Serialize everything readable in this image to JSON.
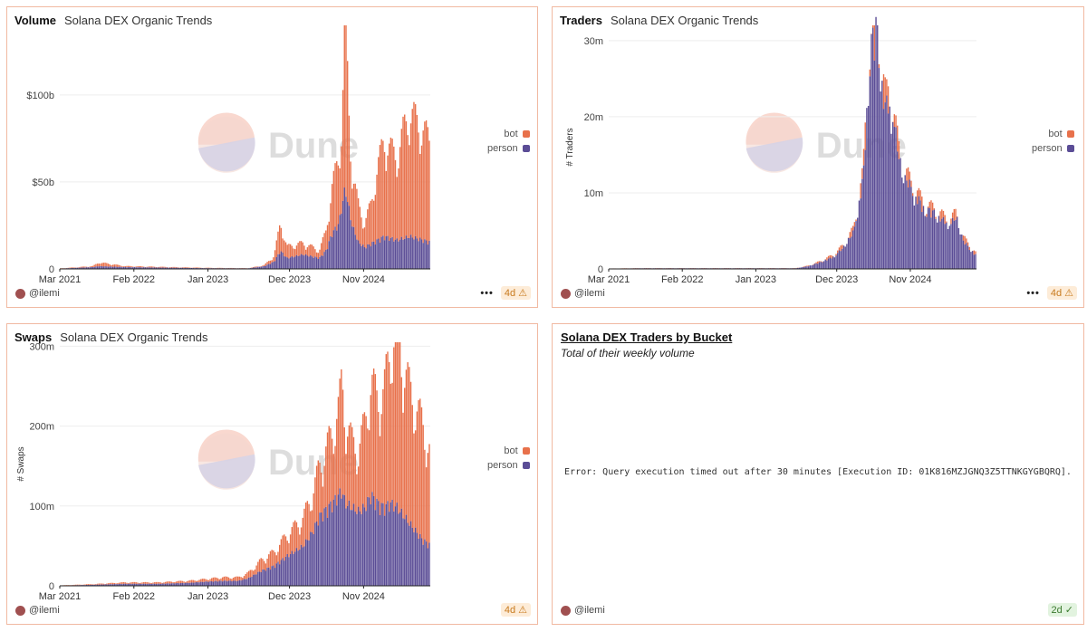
{
  "colors": {
    "bot": "#e8714b",
    "person": "#5b4d96",
    "border": "#f1b9a1",
    "grid": "#eeeeee",
    "axis": "#444444"
  },
  "watermark": {
    "text": "Dune"
  },
  "charts": {
    "volume": {
      "title": "Volume",
      "subtitle": "Solana DEX Organic Trends",
      "author": "@ilemi",
      "age": "4d",
      "legend": [
        "bot",
        "person"
      ]
    },
    "traders": {
      "title": "Traders",
      "subtitle": "Solana DEX Organic Trends",
      "author": "@ilemi",
      "age": "4d",
      "legend": [
        "bot",
        "person"
      ]
    },
    "swaps": {
      "title": "Swaps",
      "subtitle": "Solana DEX Organic Trends",
      "author": "@ilemi",
      "age": "4d",
      "legend": [
        "bot",
        "person"
      ]
    }
  },
  "table": {
    "title": "Solana DEX Traders by Bucket",
    "subtitle": "Total of their weekly volume",
    "error": "Error: Query execution timed out after 30 minutes [Execution ID: 01K816MZJGNQ3Z5TTNKGYGBQRQ].",
    "author": "@ilemi",
    "age": "2d"
  },
  "chart_data": [
    {
      "type": "bar",
      "stacked": true,
      "title": "Volume",
      "subtitle": "Solana DEX Organic Trends",
      "xlabel": "",
      "ylabel": "",
      "ylim": [
        0,
        140
      ],
      "yunit": "$b",
      "xticks": [
        "Mar 2021",
        "Feb 2022",
        "Jan 2023",
        "Dec 2023",
        "Nov 2024"
      ],
      "yticks": [
        "0",
        "$50b",
        "$100b"
      ],
      "ytick_values": [
        0,
        50,
        100
      ],
      "legend": [
        "bot",
        "person"
      ],
      "legend_position": "right",
      "x_start": "2021-03",
      "x_end": "2025-10",
      "keypoints_total": [
        [
          0,
          0.3
        ],
        [
          0.1,
          1.5
        ],
        [
          0.12,
          3.5
        ],
        [
          0.2,
          1.5
        ],
        [
          0.45,
          0.6
        ],
        [
          0.58,
          0.4
        ],
        [
          0.63,
          2
        ],
        [
          0.66,
          7
        ],
        [
          0.68,
          25
        ],
        [
          0.7,
          12
        ],
        [
          0.75,
          14
        ],
        [
          0.8,
          10
        ],
        [
          0.82,
          20
        ],
        [
          0.84,
          45
        ],
        [
          0.86,
          60
        ],
        [
          0.87,
          80
        ],
        [
          0.88,
          140
        ],
        [
          0.89,
          90
        ],
        [
          0.9,
          55
        ],
        [
          0.92,
          35
        ],
        [
          0.94,
          25
        ],
        [
          0.96,
          35
        ],
        [
          0.98,
          55
        ],
        [
          1,
          70
        ],
        [
          1.02,
          65
        ],
        [
          1.04,
          60
        ],
        [
          1.06,
          75
        ],
        [
          1.08,
          85
        ],
        [
          1.1,
          80
        ],
        [
          1.12,
          75
        ],
        [
          1.14,
          70
        ]
      ],
      "keypoints_person": [
        [
          0,
          0.2
        ],
        [
          0.1,
          1
        ],
        [
          0.12,
          1.5
        ],
        [
          0.2,
          1
        ],
        [
          0.45,
          0.4
        ],
        [
          0.58,
          0.3
        ],
        [
          0.63,
          1.5
        ],
        [
          0.66,
          4
        ],
        [
          0.68,
          10
        ],
        [
          0.7,
          6
        ],
        [
          0.75,
          8
        ],
        [
          0.8,
          6
        ],
        [
          0.82,
          10
        ],
        [
          0.84,
          20
        ],
        [
          0.86,
          25
        ],
        [
          0.87,
          35
        ],
        [
          0.88,
          45
        ],
        [
          0.89,
          35
        ],
        [
          0.9,
          25
        ],
        [
          0.92,
          15
        ],
        [
          0.94,
          12
        ],
        [
          0.96,
          14
        ],
        [
          0.98,
          16
        ],
        [
          1,
          18
        ],
        [
          1.02,
          17
        ],
        [
          1.04,
          16
        ],
        [
          1.06,
          17
        ],
        [
          1.08,
          18
        ],
        [
          1.1,
          17
        ],
        [
          1.12,
          16
        ],
        [
          1.14,
          15
        ]
      ]
    },
    {
      "type": "bar",
      "stacked": true,
      "title": "Traders",
      "subtitle": "Solana DEX Organic Trends",
      "xlabel": "",
      "ylabel": "# Traders",
      "ylim": [
        0,
        32
      ],
      "yunit": "m",
      "xticks": [
        "Mar 2021",
        "Feb 2022",
        "Jan 2023",
        "Dec 2023",
        "Nov 2024"
      ],
      "yticks": [
        "0",
        "10m",
        "20m",
        "30m"
      ],
      "ytick_values": [
        0,
        10,
        20,
        30
      ],
      "legend": [
        "bot",
        "person"
      ],
      "legend_position": "right",
      "x_start": "2021-03",
      "x_end": "2025-10",
      "keypoints_total": [
        [
          0,
          0.05
        ],
        [
          0.1,
          0.1
        ],
        [
          0.2,
          0.1
        ],
        [
          0.45,
          0.1
        ],
        [
          0.58,
          0.1
        ],
        [
          0.62,
          0.4
        ],
        [
          0.66,
          1
        ],
        [
          0.7,
          1.8
        ],
        [
          0.73,
          3
        ],
        [
          0.76,
          5
        ],
        [
          0.79,
          12
        ],
        [
          0.8,
          20
        ],
        [
          0.81,
          28
        ],
        [
          0.82,
          30
        ],
        [
          0.83,
          31.5
        ],
        [
          0.84,
          29
        ],
        [
          0.85,
          24
        ],
        [
          0.86,
          21
        ],
        [
          0.87,
          22
        ],
        [
          0.88,
          21
        ],
        [
          0.89,
          18
        ],
        [
          0.9,
          15
        ],
        [
          0.92,
          12
        ],
        [
          0.95,
          10
        ],
        [
          0.98,
          8
        ],
        [
          1.01,
          7.5
        ],
        [
          1.04,
          6.5
        ],
        [
          1.06,
          6
        ],
        [
          1.08,
          7
        ],
        [
          1.1,
          4
        ],
        [
          1.12,
          3
        ],
        [
          1.14,
          2
        ]
      ],
      "keypoints_person": [
        [
          0,
          0.04
        ],
        [
          0.1,
          0.08
        ],
        [
          0.2,
          0.08
        ],
        [
          0.45,
          0.08
        ],
        [
          0.58,
          0.08
        ],
        [
          0.62,
          0.35
        ],
        [
          0.66,
          0.9
        ],
        [
          0.7,
          1.6
        ],
        [
          0.73,
          2.8
        ],
        [
          0.76,
          4.7
        ],
        [
          0.79,
          11.5
        ],
        [
          0.8,
          19.5
        ],
        [
          0.81,
          27.5
        ],
        [
          0.82,
          29.5
        ],
        [
          0.83,
          31
        ],
        [
          0.84,
          28.5
        ],
        [
          0.85,
          23.5
        ],
        [
          0.86,
          20.5
        ],
        [
          0.87,
          21.5
        ],
        [
          0.88,
          20.5
        ],
        [
          0.89,
          17.5
        ],
        [
          0.9,
          14.6
        ],
        [
          0.92,
          11.7
        ],
        [
          0.95,
          9.7
        ],
        [
          0.98,
          7.7
        ],
        [
          1.01,
          7.2
        ],
        [
          1.04,
          6.2
        ],
        [
          1.06,
          5.7
        ],
        [
          1.08,
          6.6
        ],
        [
          1.1,
          3.7
        ],
        [
          1.12,
          2.7
        ],
        [
          1.14,
          1.8
        ]
      ]
    },
    {
      "type": "bar",
      "stacked": true,
      "title": "Swaps",
      "subtitle": "Solana DEX Organic Trends",
      "xlabel": "",
      "ylabel": "# Swaps",
      "ylim": [
        0,
        305
      ],
      "yunit": "m",
      "xticks": [
        "Mar 2021",
        "Feb 2022",
        "Jan 2023",
        "Dec 2023",
        "Nov 2024"
      ],
      "yticks": [
        "0",
        "100m",
        "200m",
        "300m"
      ],
      "ytick_values": [
        0,
        100,
        200,
        300
      ],
      "legend": [
        "bot",
        "person"
      ],
      "legend_position": "right",
      "x_start": "2021-03",
      "x_end": "2025-10",
      "keypoints_total": [
        [
          0,
          0.5
        ],
        [
          0.1,
          2
        ],
        [
          0.2,
          4
        ],
        [
          0.3,
          4
        ],
        [
          0.4,
          6
        ],
        [
          0.45,
          8
        ],
        [
          0.5,
          10
        ],
        [
          0.55,
          10
        ],
        [
          0.58,
          15
        ],
        [
          0.62,
          30
        ],
        [
          0.66,
          40
        ],
        [
          0.7,
          60
        ],
        [
          0.75,
          80
        ],
        [
          0.78,
          110
        ],
        [
          0.8,
          140
        ],
        [
          0.84,
          180
        ],
        [
          0.86,
          210
        ],
        [
          0.87,
          240
        ],
        [
          0.88,
          200
        ],
        [
          0.9,
          170
        ],
        [
          0.92,
          160
        ],
        [
          0.94,
          190
        ],
        [
          0.96,
          240
        ],
        [
          0.98,
          220
        ],
        [
          1,
          230
        ],
        [
          1.02,
          280
        ],
        [
          1.04,
          300
        ],
        [
          1.06,
          260
        ],
        [
          1.08,
          230
        ],
        [
          1.1,
          210
        ],
        [
          1.12,
          190
        ],
        [
          1.14,
          160
        ]
      ],
      "keypoints_person": [
        [
          0,
          0.3
        ],
        [
          0.1,
          1.2
        ],
        [
          0.2,
          2.4
        ],
        [
          0.3,
          2.4
        ],
        [
          0.4,
          3.6
        ],
        [
          0.45,
          5
        ],
        [
          0.5,
          6
        ],
        [
          0.55,
          6
        ],
        [
          0.58,
          9
        ],
        [
          0.62,
          18
        ],
        [
          0.66,
          24
        ],
        [
          0.7,
          36
        ],
        [
          0.75,
          48
        ],
        [
          0.78,
          66
        ],
        [
          0.8,
          84
        ],
        [
          0.84,
          100
        ],
        [
          0.86,
          110
        ],
        [
          0.87,
          115
        ],
        [
          0.88,
          100
        ],
        [
          0.9,
          95
        ],
        [
          0.92,
          90
        ],
        [
          0.94,
          95
        ],
        [
          0.96,
          110
        ],
        [
          0.98,
          100
        ],
        [
          1,
          95
        ],
        [
          1.02,
          100
        ],
        [
          1.04,
          95
        ],
        [
          1.06,
          85
        ],
        [
          1.08,
          75
        ],
        [
          1.1,
          65
        ],
        [
          1.12,
          55
        ],
        [
          1.14,
          50
        ]
      ]
    }
  ]
}
